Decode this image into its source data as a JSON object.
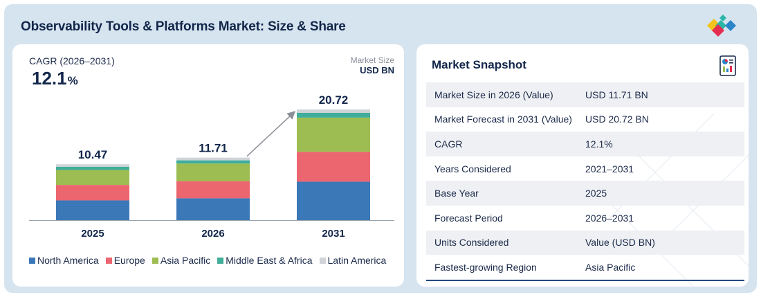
{
  "header": {
    "title": "Observability Tools & Platforms Market: Size & Share"
  },
  "left": {
    "cagr_label": "CAGR (2026–2031)",
    "cagr_value": "12.1",
    "cagr_unit": "%",
    "market_size_label": "Market Size",
    "market_size_unit": "USD BN"
  },
  "chart_data": {
    "type": "bar",
    "stacked": true,
    "categories": [
      "2025",
      "2026",
      "2031"
    ],
    "totals": [
      10.47,
      11.71,
      20.72
    ],
    "series": [
      {
        "name": "North America",
        "color": "#3b78b8",
        "values": [
          3.7,
          4.1,
          7.2
        ]
      },
      {
        "name": "Europe",
        "color": "#ec6670",
        "values": [
          2.9,
          3.2,
          5.6
        ]
      },
      {
        "name": "Asia Pacific",
        "color": "#9dbd52",
        "values": [
          2.8,
          3.3,
          6.4
        ]
      },
      {
        "name": "Middle East & Africa",
        "color": "#3fae9a",
        "values": [
          0.6,
          0.6,
          0.9
        ]
      },
      {
        "name": "Latin America",
        "color": "#d0d3d8",
        "values": [
          0.47,
          0.51,
          0.62
        ]
      }
    ],
    "ylim": [
      0,
      21
    ],
    "xlabel": "",
    "ylabel": "",
    "legend": "bottom"
  },
  "snapshot": {
    "title": "Market Snapshot",
    "rows": [
      {
        "key": "Market Size in 2026 (Value)",
        "value": "USD 11.71 BN"
      },
      {
        "key": "Market Forecast in 2031 (Value)",
        "value": "USD 20.72 BN"
      },
      {
        "key": "CAGR",
        "value": "12.1%"
      },
      {
        "key": "Years Considered",
        "value": "2021–2031"
      },
      {
        "key": "Base Year",
        "value": "2025"
      },
      {
        "key": "Forecast Period",
        "value": "2026–2031"
      },
      {
        "key": "Units Considered",
        "value": "Value (USD BN)"
      },
      {
        "key": "Fastest-growing Region",
        "value": "Asia Pacific"
      }
    ]
  },
  "colors": {
    "background": "#d6e4f0",
    "title": "#12264a",
    "accent_line": "#23497e"
  },
  "icons": {
    "logo": "brand-diamonds-logo",
    "snapshot": "report-document-icon"
  }
}
